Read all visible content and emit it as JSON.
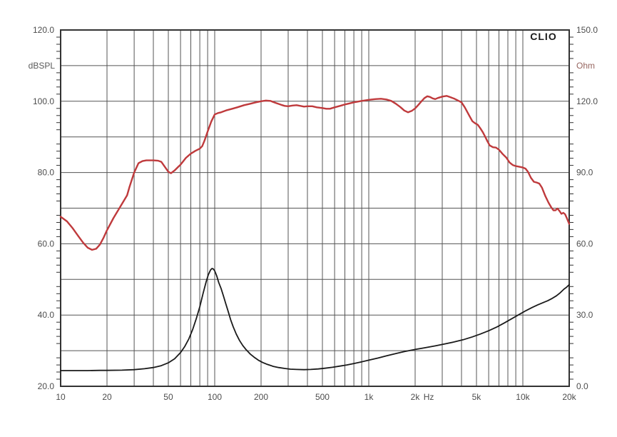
{
  "app": {
    "watermark": "CLIO"
  },
  "chart_data": {
    "type": "line",
    "title": "",
    "grid": true,
    "legend": "none",
    "x_axis": {
      "scale": "log",
      "unit": "Hz",
      "min": 10,
      "max": 20000,
      "major_ticks": [
        {
          "value": 10,
          "label": "10"
        },
        {
          "value": 20,
          "label": "20"
        },
        {
          "value": 50,
          "label": "50"
        },
        {
          "value": 100,
          "label": "100"
        },
        {
          "value": 200,
          "label": "200"
        },
        {
          "value": 500,
          "label": "500"
        },
        {
          "value": 1000,
          "label": "1k"
        },
        {
          "value": 2000,
          "label": "2k"
        },
        {
          "value": 5000,
          "label": "5k"
        },
        {
          "value": 10000,
          "label": "10k"
        },
        {
          "value": 20000,
          "label": "20k"
        }
      ],
      "unit_label": {
        "text": "Hz",
        "at_value": 2450
      }
    },
    "left_axis": {
      "label": "dBSPL",
      "min": 20,
      "max": 120,
      "gridline_step": 10,
      "minor_tick_step": 2,
      "tick_labels": [
        {
          "value": 120,
          "label": "120.0"
        },
        {
          "value": 100,
          "label": "100.0"
        },
        {
          "value": 80,
          "label": "80.0"
        },
        {
          "value": 60,
          "label": "60.0"
        },
        {
          "value": 40,
          "label": "40.0"
        },
        {
          "value": 20,
          "label": "20.0"
        }
      ]
    },
    "right_axis": {
      "label": "Ohm",
      "min": 0,
      "max": 150,
      "minor_tick_step": 3,
      "gridline_equiv_step": 15,
      "tick_labels": [
        {
          "value": 150,
          "label": "150.0"
        },
        {
          "value": 120,
          "label": "120.0"
        },
        {
          "value": 90,
          "label": "90.0"
        },
        {
          "value": 60,
          "label": "60.0"
        },
        {
          "value": 30,
          "label": "30.0"
        },
        {
          "value": 0,
          "label": "0.0"
        }
      ]
    },
    "series": [
      {
        "name": "spl-response",
        "unit": "dBSPL",
        "axis": "left",
        "color": "#bf3a3c",
        "stroke_width": 2.4,
        "points": [
          [
            10,
            67.6
          ],
          [
            11,
            66.3
          ],
          [
            12,
            64.3
          ],
          [
            13,
            62.2
          ],
          [
            14,
            60.3
          ],
          [
            15,
            58.9
          ],
          [
            16,
            58.3
          ],
          [
            17,
            58.6
          ],
          [
            18,
            59.8
          ],
          [
            19,
            61.7
          ],
          [
            20,
            63.8
          ],
          [
            22,
            67.2
          ],
          [
            25,
            71.2
          ],
          [
            27,
            73.6
          ],
          [
            28,
            76.0
          ],
          [
            30,
            80.0
          ],
          [
            32,
            82.6
          ],
          [
            34,
            83.2
          ],
          [
            36,
            83.4
          ],
          [
            40,
            83.4
          ],
          [
            43,
            83.3
          ],
          [
            45,
            83.0
          ],
          [
            48,
            81.3
          ],
          [
            50,
            80.2
          ],
          [
            52,
            79.8
          ],
          [
            55,
            80.6
          ],
          [
            58,
            81.6
          ],
          [
            60,
            82.2
          ],
          [
            65,
            84.1
          ],
          [
            70,
            85.3
          ],
          [
            75,
            86.1
          ],
          [
            80,
            86.7
          ],
          [
            83,
            87.4
          ],
          [
            86,
            89.0
          ],
          [
            90,
            91.5
          ],
          [
            95,
            94.3
          ],
          [
            100,
            96.3
          ],
          [
            105,
            96.7
          ],
          [
            110,
            96.9
          ],
          [
            120,
            97.5
          ],
          [
            130,
            97.9
          ],
          [
            140,
            98.3
          ],
          [
            155,
            98.9
          ],
          [
            170,
            99.3
          ],
          [
            185,
            99.7
          ],
          [
            200,
            100.0
          ],
          [
            215,
            100.2
          ],
          [
            230,
            100.1
          ],
          [
            250,
            99.5
          ],
          [
            270,
            99.0
          ],
          [
            285,
            98.7
          ],
          [
            300,
            98.6
          ],
          [
            320,
            98.8
          ],
          [
            340,
            98.9
          ],
          [
            360,
            98.7
          ],
          [
            380,
            98.5
          ],
          [
            400,
            98.6
          ],
          [
            430,
            98.6
          ],
          [
            460,
            98.3
          ],
          [
            500,
            98.1
          ],
          [
            530,
            97.9
          ],
          [
            560,
            97.9
          ],
          [
            600,
            98.3
          ],
          [
            650,
            98.7
          ],
          [
            700,
            99.1
          ],
          [
            750,
            99.4
          ],
          [
            800,
            99.7
          ],
          [
            850,
            99.9
          ],
          [
            900,
            100.1
          ],
          [
            1000,
            100.4
          ],
          [
            1100,
            100.6
          ],
          [
            1200,
            100.7
          ],
          [
            1300,
            100.5
          ],
          [
            1400,
            100.1
          ],
          [
            1500,
            99.3
          ],
          [
            1600,
            98.4
          ],
          [
            1700,
            97.4
          ],
          [
            1800,
            96.9
          ],
          [
            1900,
            97.3
          ],
          [
            2000,
            98.0
          ],
          [
            2100,
            99.0
          ],
          [
            2200,
            100.0
          ],
          [
            2300,
            100.9
          ],
          [
            2400,
            101.4
          ],
          [
            2500,
            101.2
          ],
          [
            2600,
            100.8
          ],
          [
            2700,
            100.6
          ],
          [
            2800,
            100.9
          ],
          [
            3000,
            101.3
          ],
          [
            3200,
            101.5
          ],
          [
            3400,
            101.1
          ],
          [
            3600,
            100.7
          ],
          [
            3800,
            100.2
          ],
          [
            4000,
            99.7
          ],
          [
            4200,
            98.3
          ],
          [
            4500,
            95.9
          ],
          [
            4700,
            94.4
          ],
          [
            4900,
            93.8
          ],
          [
            5100,
            93.4
          ],
          [
            5300,
            92.4
          ],
          [
            5500,
            91.3
          ],
          [
            5700,
            90.0
          ],
          [
            5900,
            88.7
          ],
          [
            6100,
            87.6
          ],
          [
            6400,
            87.1
          ],
          [
            6700,
            87.0
          ],
          [
            7000,
            86.4
          ],
          [
            7400,
            85.2
          ],
          [
            7800,
            84.2
          ],
          [
            8200,
            82.8
          ],
          [
            8600,
            82.1
          ],
          [
            9000,
            81.8
          ],
          [
            9500,
            81.6
          ],
          [
            10000,
            81.4
          ],
          [
            10400,
            81.1
          ],
          [
            10800,
            80.2
          ],
          [
            11300,
            78.5
          ],
          [
            11800,
            77.4
          ],
          [
            12300,
            77.2
          ],
          [
            12800,
            76.9
          ],
          [
            13300,
            75.8
          ],
          [
            14000,
            73.4
          ],
          [
            14700,
            71.5
          ],
          [
            15300,
            70.2
          ],
          [
            15800,
            69.4
          ],
          [
            16300,
            69.4
          ],
          [
            16800,
            69.9
          ],
          [
            17300,
            69.2
          ],
          [
            17800,
            68.4
          ],
          [
            18300,
            68.7
          ],
          [
            18800,
            68.3
          ],
          [
            19300,
            67.2
          ],
          [
            20000,
            65.6
          ]
        ]
      },
      {
        "name": "impedance",
        "unit": "Ohm",
        "axis": "right",
        "color": "#1a1a1a",
        "stroke_width": 1.8,
        "points": [
          [
            10,
            6.6
          ],
          [
            12,
            6.6
          ],
          [
            15,
            6.6
          ],
          [
            18,
            6.7
          ],
          [
            20,
            6.7
          ],
          [
            25,
            6.8
          ],
          [
            30,
            7.0
          ],
          [
            35,
            7.4
          ],
          [
            40,
            7.9
          ],
          [
            45,
            8.7
          ],
          [
            50,
            9.9
          ],
          [
            55,
            11.6
          ],
          [
            60,
            14.2
          ],
          [
            64,
            16.8
          ],
          [
            68,
            20.0
          ],
          [
            72,
            24.0
          ],
          [
            76,
            28.5
          ],
          [
            80,
            33.5
          ],
          [
            84,
            39.0
          ],
          [
            88,
            44.0
          ],
          [
            91,
            47.0
          ],
          [
            94,
            49.0
          ],
          [
            96,
            49.6
          ],
          [
            98,
            49.4
          ],
          [
            100,
            48.6
          ],
          [
            103,
            46.5
          ],
          [
            106,
            43.8
          ],
          [
            110,
            41.2
          ],
          [
            114,
            38.0
          ],
          [
            118,
            34.8
          ],
          [
            122,
            31.8
          ],
          [
            127,
            28.0
          ],
          [
            132,
            25.0
          ],
          [
            138,
            22.0
          ],
          [
            145,
            19.3
          ],
          [
            152,
            17.2
          ],
          [
            160,
            15.4
          ],
          [
            170,
            13.6
          ],
          [
            180,
            12.3
          ],
          [
            192,
            11.0
          ],
          [
            205,
            10.0
          ],
          [
            220,
            9.2
          ],
          [
            240,
            8.4
          ],
          [
            260,
            7.9
          ],
          [
            285,
            7.5
          ],
          [
            310,
            7.2
          ],
          [
            340,
            7.1
          ],
          [
            380,
            7.0
          ],
          [
            420,
            7.1
          ],
          [
            470,
            7.3
          ],
          [
            520,
            7.6
          ],
          [
            580,
            8.0
          ],
          [
            650,
            8.5
          ],
          [
            720,
            9.0
          ],
          [
            800,
            9.6
          ],
          [
            900,
            10.3
          ],
          [
            1000,
            11.0
          ],
          [
            1150,
            11.9
          ],
          [
            1300,
            12.8
          ],
          [
            1500,
            13.8
          ],
          [
            1700,
            14.6
          ],
          [
            2000,
            15.5
          ],
          [
            2300,
            16.2
          ],
          [
            2700,
            17.0
          ],
          [
            3100,
            17.8
          ],
          [
            3600,
            18.7
          ],
          [
            4100,
            19.6
          ],
          [
            4700,
            20.8
          ],
          [
            5300,
            22.0
          ],
          [
            6000,
            23.4
          ],
          [
            6800,
            25.0
          ],
          [
            7600,
            26.7
          ],
          [
            8500,
            28.5
          ],
          [
            9500,
            30.3
          ],
          [
            10500,
            31.9
          ],
          [
            11500,
            33.2
          ],
          [
            12500,
            34.3
          ],
          [
            13500,
            35.2
          ],
          [
            14500,
            36.0
          ],
          [
            15500,
            37.0
          ],
          [
            16500,
            38.1
          ],
          [
            17500,
            39.4
          ],
          [
            18500,
            40.9
          ],
          [
            19200,
            41.7
          ],
          [
            20000,
            42.8
          ]
        ]
      }
    ],
    "colors": {
      "background": "#ffffff",
      "grid": "#555555",
      "border": "#333333",
      "tick_label": "#4d4d4d",
      "left_unit_label": "#5a5a5a",
      "right_unit_label": "#96655f",
      "watermark": "#1a1a1a"
    }
  }
}
